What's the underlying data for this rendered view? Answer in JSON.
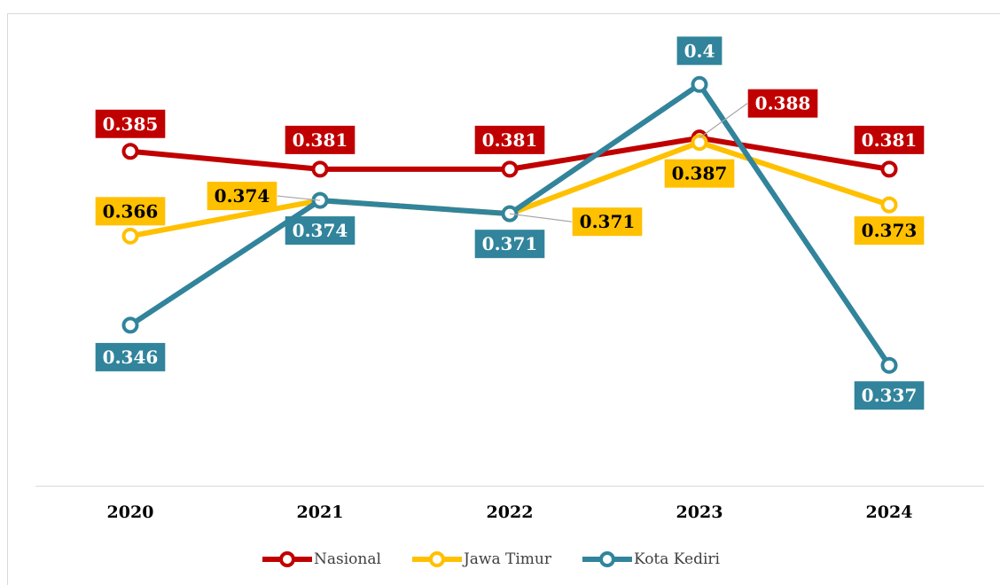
{
  "chart_data": {
    "type": "line",
    "categories": [
      "2020",
      "2021",
      "2022",
      "2023",
      "2024"
    ],
    "series": [
      {
        "name": "Nasional",
        "color": "#c00000",
        "label_text_color": "#ffffff",
        "values": [
          0.385,
          0.381,
          0.381,
          0.388,
          0.381
        ]
      },
      {
        "name": "Jawa Timur",
        "color": "#ffc000",
        "label_text_color": "#000000",
        "values": [
          0.366,
          0.374,
          0.371,
          0.387,
          0.373
        ]
      },
      {
        "name": "Kota Kediri",
        "color": "#31849b",
        "label_text_color": "#ffffff",
        "values": [
          0.346,
          0.374,
          0.371,
          0.4,
          0.337
        ]
      }
    ],
    "ylim": [
      0.31,
      0.41
    ],
    "legend": "bottom"
  }
}
